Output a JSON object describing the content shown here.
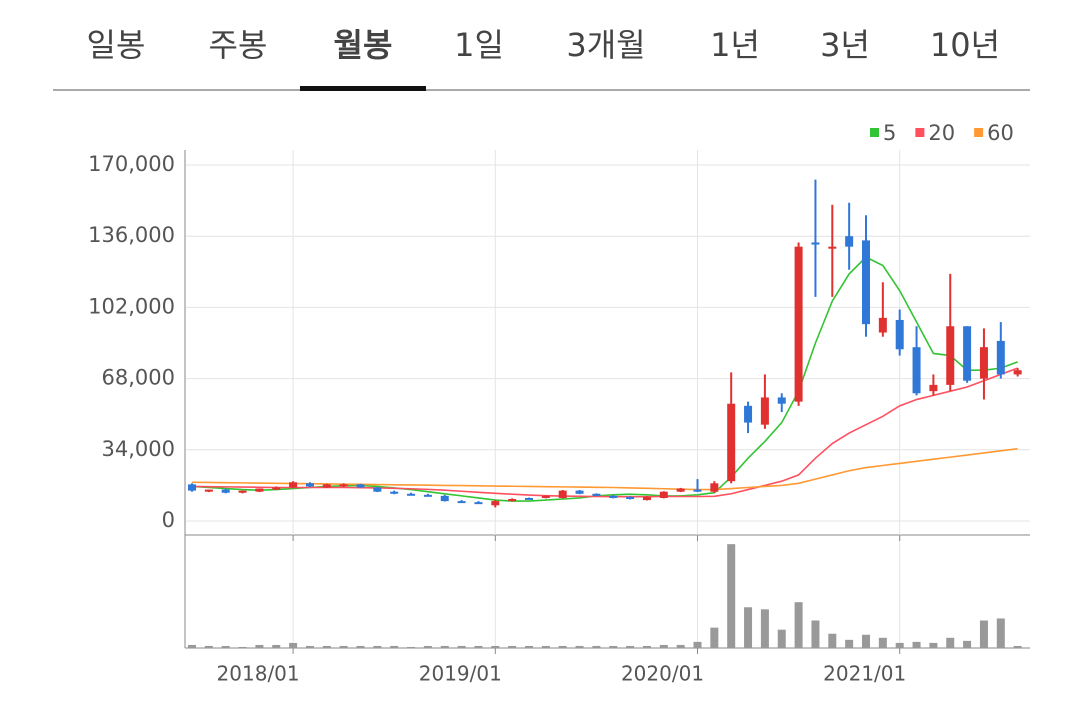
{
  "tabs": [
    "일봉",
    "주봉",
    "월봉",
    "1일",
    "3개월",
    "1년",
    "3년",
    "10년"
  ],
  "selected_tab": 2,
  "chart_data": {
    "type": "candlestick",
    "categories": [
      null,
      null,
      null,
      null,
      null,
      null,
      "2018/01",
      null,
      null,
      null,
      null,
      null,
      null,
      null,
      null,
      null,
      null,
      null,
      "2019/01",
      null,
      null,
      null,
      null,
      null,
      null,
      null,
      null,
      null,
      null,
      null,
      "2020/01",
      null,
      null,
      null,
      null,
      null,
      null,
      null,
      null,
      null,
      null,
      null,
      "2021/01",
      null,
      null,
      null,
      null,
      null,
      null,
      null
    ],
    "open": [
      17500,
      14000,
      15000,
      13500,
      14000,
      15000,
      16000,
      18000,
      16000,
      16500,
      17500,
      16000,
      14000,
      13000,
      12500,
      12000,
      9500,
      9000,
      7500,
      9500,
      11000,
      11000,
      11000,
      14500,
      13000,
      12000,
      11500,
      10000,
      11000,
      14000,
      15000,
      14000,
      19000,
      55000,
      46000,
      59000,
      57000,
      133000,
      131000,
      136000,
      134000,
      90000,
      96000,
      83000,
      62000,
      65000,
      93000,
      68000,
      86000,
      70000
    ],
    "high": [
      18000,
      15000,
      15500,
      14500,
      15500,
      16500,
      19000,
      18500,
      17800,
      18000,
      17800,
      16200,
      14500,
      13500,
      13000,
      12500,
      10000,
      9500,
      10000,
      10800,
      11200,
      12200,
      14800,
      14800,
      13200,
      12300,
      11800,
      11800,
      14200,
      15800,
      20000,
      19000,
      71000,
      57000,
      70000,
      61000,
      133000,
      163000,
      151000,
      152000,
      146000,
      114000,
      101000,
      93000,
      70000,
      118000,
      93000,
      92000,
      95000,
      73000
    ],
    "low": [
      14000,
      13800,
      13200,
      13200,
      13800,
      14800,
      15800,
      16200,
      15800,
      16200,
      15800,
      13800,
      12800,
      12300,
      11800,
      9300,
      8800,
      8300,
      6500,
      9300,
      10300,
      10800,
      10800,
      12800,
      11800,
      10800,
      10300,
      9800,
      10800,
      13800,
      13800,
      13500,
      18000,
      42000,
      44000,
      52000,
      55000,
      107000,
      107000,
      120000,
      88000,
      88000,
      79000,
      60000,
      60000,
      62000,
      66000,
      58000,
      68000,
      69000
    ],
    "close": [
      14500,
      15000,
      13500,
      14500,
      15500,
      16000,
      18500,
      16500,
      17500,
      17500,
      16000,
      14000,
      13000,
      12500,
      12000,
      9500,
      9000,
      8500,
      9500,
      10500,
      10500,
      12000,
      14500,
      13000,
      12000,
      11000,
      10500,
      11500,
      14000,
      15500,
      14000,
      18000,
      56000,
      47000,
      59000,
      56000,
      131000,
      132000,
      131000,
      131000,
      94000,
      97000,
      82000,
      61000,
      65000,
      93000,
      67000,
      83000,
      70000,
      72000
    ],
    "up_color": "#e03030",
    "down_color": "#2f78d8",
    "series": [
      {
        "name": "5",
        "color": "#33c433",
        "values": [
          16500,
          16000,
          15500,
          15000,
          14700,
          15000,
          15500,
          16000,
          16500,
          16800,
          17000,
          16500,
          15800,
          15000,
          14000,
          13000,
          12000,
          11000,
          10000,
          9500,
          9500,
          10000,
          10500,
          11000,
          12000,
          12500,
          12800,
          12500,
          12000,
          12000,
          12500,
          13500,
          21000,
          30000,
          38000,
          47000,
          62000,
          85000,
          105000,
          118000,
          126000,
          122000,
          110000,
          95000,
          80000,
          79000,
          72000,
          72000,
          73000,
          76000
        ]
      },
      {
        "name": "20",
        "color": "#ff5060",
        "values": [
          16500,
          16400,
          16300,
          16200,
          16100,
          16000,
          16000,
          16000,
          16000,
          16000,
          15900,
          15800,
          15600,
          15400,
          15100,
          14700,
          14200,
          13700,
          13200,
          12800,
          12400,
          12100,
          11900,
          11800,
          11700,
          11600,
          11600,
          11600,
          11700,
          11700,
          11700,
          11800,
          13000,
          15000,
          17000,
          19000,
          22000,
          30000,
          37000,
          42000,
          46000,
          50000,
          55000,
          58000,
          60000,
          62000,
          64000,
          67000,
          70000,
          73000
        ]
      },
      {
        "name": "60",
        "color": "#ff9933",
        "values": [
          18500,
          18400,
          18300,
          18200,
          18100,
          18000,
          17900,
          17800,
          17700,
          17600,
          17500,
          17400,
          17300,
          17200,
          17100,
          17000,
          16900,
          16800,
          16700,
          16600,
          16500,
          16400,
          16300,
          16200,
          16100,
          16000,
          15800,
          15600,
          15400,
          15200,
          15000,
          15000,
          15500,
          16000,
          16500,
          17000,
          18000,
          20000,
          22000,
          24000,
          25500,
          26500,
          27500,
          28500,
          29500,
          30500,
          31500,
          32500,
          33500,
          34500
        ]
      }
    ],
    "ylim": [
      0,
      170000
    ],
    "yticks": [
      0,
      {
        "value": 34000,
        "label": "34,000"
      },
      {
        "value": 68000,
        "label": "68,000"
      },
      {
        "value": 102000,
        "label": "102,000"
      },
      {
        "value": 136000,
        "label": "136,000"
      },
      {
        "value": 170000,
        "label": "170,000"
      }
    ],
    "grid": true,
    "volume": {
      "color": "#999999",
      "ylim": [
        0,
        110
      ],
      "values": [
        3,
        2,
        2,
        1,
        3,
        3,
        5,
        2,
        2,
        2,
        2,
        2,
        2,
        1,
        2,
        2,
        2,
        2,
        2,
        2,
        2,
        2,
        2,
        2,
        2,
        2,
        2,
        2,
        3,
        3,
        6,
        20,
        102,
        40,
        38,
        18,
        45,
        27,
        14,
        8,
        13,
        10,
        5,
        6,
        5,
        10,
        7,
        27,
        29,
        2
      ]
    }
  }
}
